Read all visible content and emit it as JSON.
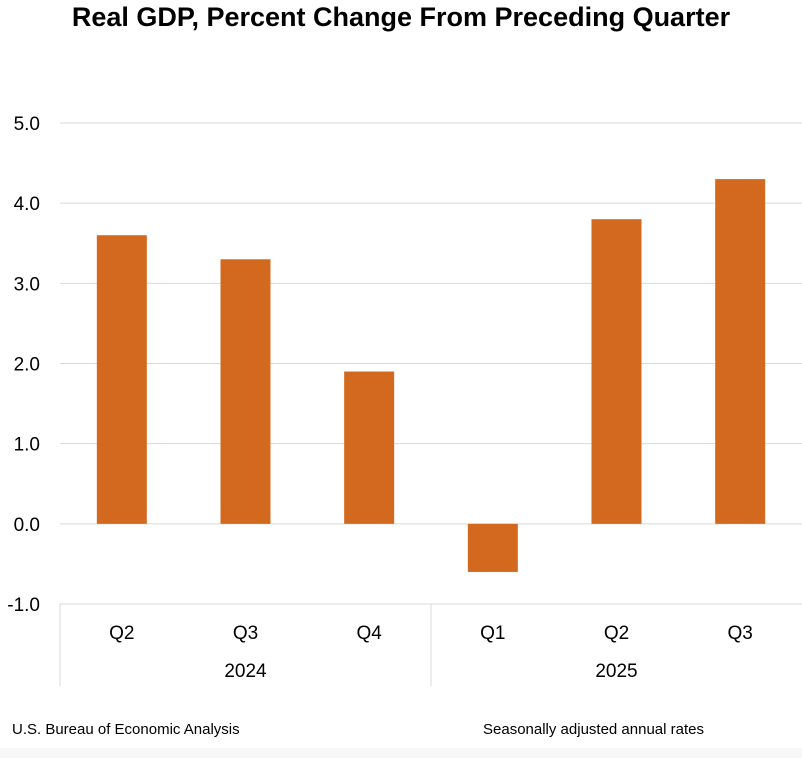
{
  "title": "Real GDP, Percent Change From Preceding Quarter",
  "footer": {
    "source": "U.S. Bureau of Economic Analysis",
    "note": "Seasonally adjusted annual rates"
  },
  "chart_data": {
    "type": "bar",
    "title": "Real GDP, Percent Change From Preceding Quarter",
    "categories": [
      "Q2",
      "Q3",
      "Q4",
      "Q1",
      "Q2",
      "Q3"
    ],
    "groups": [
      {
        "label": "2024",
        "count": 3
      },
      {
        "label": "2025",
        "count": 3
      }
    ],
    "values": [
      3.6,
      3.3,
      1.9,
      -0.6,
      3.8,
      4.3
    ],
    "ylim": [
      -1.0,
      5.0
    ],
    "yticks": [
      "5.0",
      "4.0",
      "3.0",
      "2.0",
      "1.0",
      "0.0",
      "-1.0"
    ],
    "ytick_values": [
      5,
      4,
      3,
      2,
      1,
      0,
      -1
    ],
    "xlabel": "",
    "ylabel": "",
    "grid": true,
    "bar_color": "#D2691E"
  }
}
